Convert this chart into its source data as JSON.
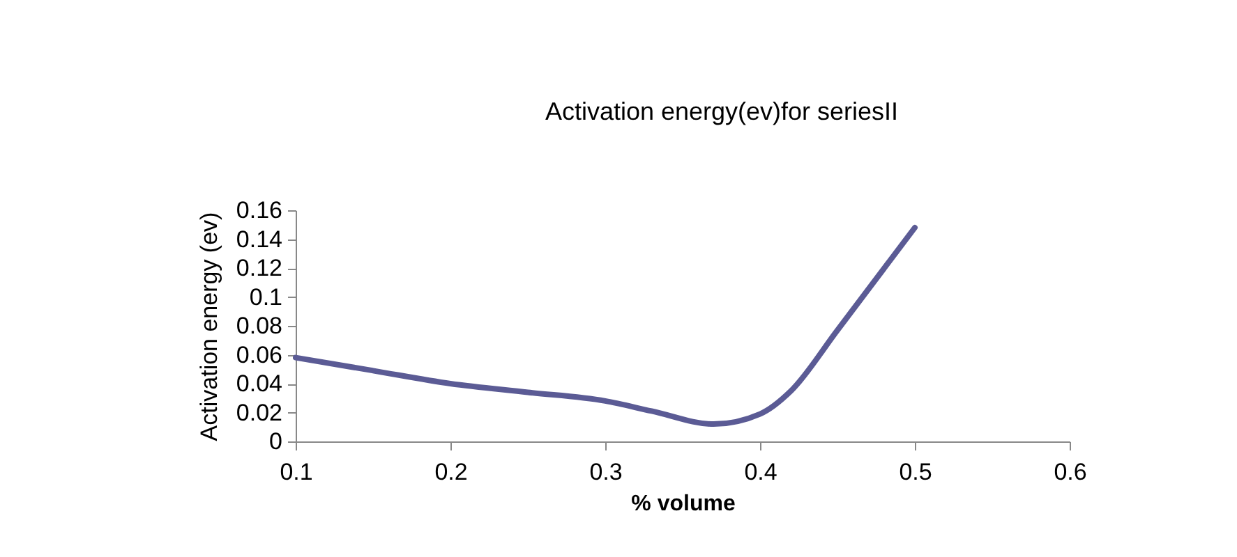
{
  "chart_data": {
    "type": "line",
    "title": "Activation energy(ev)for seriesII",
    "xlabel": "% volume",
    "ylabel": "Activation energy (ev)",
    "x": [
      0.1,
      0.15,
      0.2,
      0.25,
      0.3,
      0.33,
      0.37,
      0.4,
      0.42,
      0.45,
      0.5
    ],
    "series": [
      {
        "color": "#5b5b95",
        "values": [
          0.058,
          0.049,
          0.04,
          0.034,
          0.028,
          0.021,
          0.012,
          0.019,
          0.035,
          0.077,
          0.148
        ]
      }
    ],
    "xlim": [
      0.1,
      0.6
    ],
    "xticks": [
      0.1,
      0.2,
      0.3,
      0.4,
      0.5,
      0.6
    ],
    "ylim": [
      0,
      0.16
    ],
    "yticks": [
      0,
      0.02,
      0.04,
      0.06,
      0.08,
      0.1,
      0.12,
      0.14,
      0.16
    ],
    "grid": false,
    "marker": "none",
    "line_style": "solid"
  }
}
